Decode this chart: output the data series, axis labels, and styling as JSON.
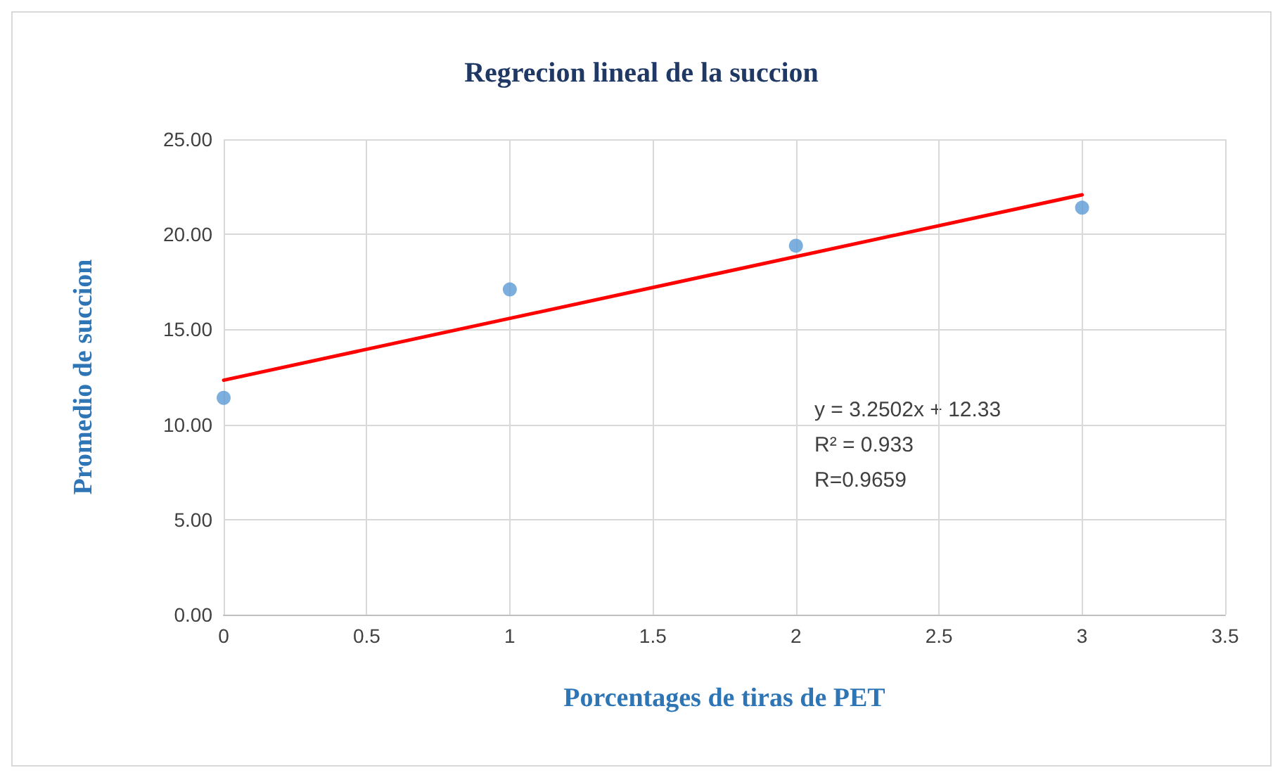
{
  "chart_data": {
    "type": "scatter",
    "title": "Regrecion lineal de la succion",
    "xlabel": "Porcentages de tiras de PET",
    "ylabel": "Promedio de succion",
    "series": [
      {
        "color": "#5b9bd5",
        "marker": "circle",
        "x": [
          0,
          1,
          2,
          3
        ],
        "values": [
          11.4,
          17.1,
          19.4,
          21.4
        ]
      },
      {
        "type": "line",
        "color": "#ff0000",
        "marker": "none",
        "line_style": "solid",
        "x": [
          0,
          3
        ],
        "values": [
          12.33,
          22.08
        ]
      }
    ],
    "xlim": [
      0,
      3.5
    ],
    "xticks": [
      0,
      0.5,
      1,
      1.5,
      2,
      2.5,
      3,
      3.5
    ],
    "ylim": [
      0,
      25
    ],
    "yticks": [
      {
        "value": 0,
        "label": "0.00"
      },
      {
        "value": 5,
        "label": "5.00"
      },
      {
        "value": 10,
        "label": "10.00"
      },
      {
        "value": 15,
        "label": "15.00"
      },
      {
        "value": 20,
        "label": "20.00"
      },
      {
        "value": 25,
        "label": "25.00"
      }
    ],
    "grid": true,
    "annotations": [
      "y = 3.2502x + 12.33",
      "R² = 0.933",
      "R=0.9659"
    ]
  }
}
